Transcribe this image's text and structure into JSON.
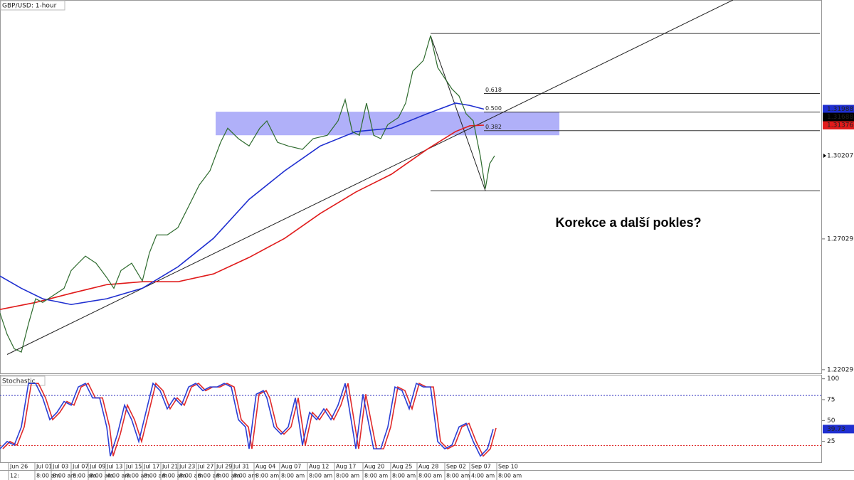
{
  "chart_data": [
    {
      "type": "line",
      "title": "GBP/USD: 1-hour",
      "xlim": [
        0,
        1155
      ],
      "ylim": [
        1.2189,
        1.3616
      ],
      "yticks": [
        1.22029,
        1.27029
      ],
      "xticks": [
        {
          "value": 12,
          "label": "Jun 26",
          "time": "12:"
        },
        {
          "value": 49,
          "label": "Jul 01",
          "time": "8:00 am"
        },
        {
          "value": 72,
          "label": "Jul 03",
          "time": "8:00 am"
        },
        {
          "value": 100,
          "label": "Jul 07",
          "time": "8:00 am"
        },
        {
          "value": 124,
          "label": "Jul 09",
          "time": "8:00 am"
        },
        {
          "value": 148,
          "label": "Jul 13",
          "time": "4:00 am"
        },
        {
          "value": 175,
          "label": "Jul 15",
          "time": "8:00 am"
        },
        {
          "value": 200,
          "label": "Jul 17",
          "time": "8:00 am"
        },
        {
          "value": 226,
          "label": "Jul 21",
          "time": "8:00 am"
        },
        {
          "value": 250,
          "label": "Jul 23",
          "time": "8:00 am"
        },
        {
          "value": 276,
          "label": "Jul 27",
          "time": "8:00 am"
        },
        {
          "value": 302,
          "label": "Jul 29",
          "time": "8:00 am"
        },
        {
          "value": 326,
          "label": "Jul 31",
          "time": "8:00 am"
        },
        {
          "value": 357,
          "label": "Aug 04",
          "time": "8:00 am"
        },
        {
          "value": 393,
          "label": "Aug 07",
          "time": "8:00 am"
        },
        {
          "value": 432,
          "label": "Aug 12",
          "time": "8:00 am"
        },
        {
          "value": 470,
          "label": "Aug 17",
          "time": "8:00 am"
        },
        {
          "value": 510,
          "label": "Aug 20",
          "time": "8:00 am"
        },
        {
          "value": 549,
          "label": "Aug 25",
          "time": "8:00 am"
        },
        {
          "value": 586,
          "label": "Aug 28",
          "time": "8:00 am"
        },
        {
          "value": 625,
          "label": "Sep 02",
          "time": "8:00 am"
        },
        {
          "value": 660,
          "label": "Sep 07",
          "time": "4:00 am"
        },
        {
          "value": 698,
          "label": "Sep 10",
          "time": "8:00 am"
        }
      ],
      "series": [
        {
          "color": "#2e6b2e",
          "x": [
            0,
            10,
            20,
            30,
            40,
            50,
            60,
            75,
            90,
            100,
            110,
            120,
            135,
            150,
            160,
            170,
            185,
            200,
            210,
            220,
            235,
            250,
            265,
            280,
            295,
            310,
            320,
            335,
            350,
            365,
            375,
            390,
            405,
            425,
            440,
            460,
            475,
            485,
            495,
            505,
            515,
            525,
            535,
            545,
            560,
            570,
            580,
            595,
            605,
            615,
            625,
            635,
            645,
            655,
            665,
            675,
            682,
            688,
            695
          ],
          "values": [
            1.2419,
            1.2338,
            1.2283,
            1.227,
            1.2378,
            1.2474,
            1.246,
            1.2487,
            1.2514,
            1.2582,
            1.261,
            1.2637,
            1.261,
            1.2555,
            1.2514,
            1.2582,
            1.261,
            1.2542,
            1.265,
            1.2718,
            1.2718,
            1.2746,
            1.2827,
            1.2909,
            1.2963,
            1.3072,
            1.3126,
            1.3086,
            1.3058,
            1.3126,
            1.3154,
            1.3072,
            1.3058,
            1.3045,
            1.3086,
            1.3099,
            1.3154,
            1.3235,
            1.3113,
            1.3099,
            1.3222,
            1.3099,
            1.3086,
            1.314,
            1.3167,
            1.3222,
            1.3344,
            1.3385,
            1.348,
            1.3358,
            1.3317,
            1.3276,
            1.3249,
            1.3181,
            1.3154,
            1.3018,
            1.2895,
            1.299,
            1.30207
          ],
          "label_bg": "#ffffff"
        },
        {
          "color": "#1f2fd0",
          "x": [
            0,
            30,
            60,
            100,
            150,
            200,
            250,
            300,
            350,
            400,
            450,
            500,
            550,
            600,
            640,
            660,
            680
          ],
          "values": [
            1.2561,
            1.2514,
            1.2474,
            1.2452,
            1.2474,
            1.2514,
            1.2596,
            1.2705,
            1.2854,
            1.2963,
            1.3058,
            1.3113,
            1.3126,
            1.3181,
            1.3222,
            1.3213,
            1.31988
          ],
          "label_bg": "#1f2fd0"
        },
        {
          "color": "#e01b1b",
          "x": [
            0,
            50,
            100,
            150,
            200,
            250,
            300,
            350,
            400,
            450,
            500,
            550,
            600,
            640,
            660,
            680
          ],
          "values": [
            1.2433,
            1.246,
            1.2495,
            1.2528,
            1.2539,
            1.2539,
            1.2569,
            1.2632,
            1.2705,
            1.28,
            1.2882,
            1.295,
            1.3045,
            1.3113,
            1.3135,
            1.31376
          ],
          "label_bg": "#e01b1b"
        }
      ],
      "price_labels": [
        {
          "value": 1.31688,
          "background": "#000000"
        }
      ],
      "swing": {
        "x": [
          605,
          1152
        ],
        "high": 1.3488,
        "low": 1.2887
      },
      "fib": {
        "x": [
          680,
          1152
        ],
        "ratios": [
          0.618,
          {
            "value": 0.5,
            "label": "0.500"
          },
          0.382
        ]
      },
      "zone": {
        "x": [
          303,
          786
        ],
        "y": [
          1.3099,
          1.3189
        ],
        "color": "#8f8ff7"
      },
      "trendlines": [
        {
          "x": [
            10,
            1030
          ],
          "y": [
            1.2261,
            1.3616
          ]
        },
        {
          "x": [
            605,
            682
          ],
          "y": [
            1.348,
            1.2887
          ]
        }
      ],
      "annotation": "Korekce a další pokles?"
    },
    {
      "type": "line",
      "title": "Stochastic",
      "xlim": [
        0,
        1155
      ],
      "ylim": [
        0,
        104
      ],
      "yticks": [
        25,
        50,
        75,
        100
      ],
      "levels": [
        {
          "value": 80,
          "color": "#3a3ac0"
        },
        {
          "value": 20,
          "color": "#e03030"
        }
      ],
      "series": [
        {
          "color": "#2b3fd6",
          "x": [
            0,
            10,
            20,
            30,
            40,
            50,
            60,
            70,
            80,
            90,
            100,
            110,
            120,
            130,
            140,
            150,
            155,
            165,
            175,
            185,
            195,
            205,
            215,
            225,
            235,
            245,
            255,
            265,
            275,
            285,
            295,
            305,
            315,
            325,
            335,
            345,
            350,
            360,
            370,
            375,
            385,
            395,
            405,
            415,
            425,
            435,
            445,
            455,
            465,
            475,
            485,
            495,
            500,
            510,
            515,
            525,
            535,
            545,
            555,
            565,
            575,
            585,
            595,
            605,
            615,
            625,
            635,
            645,
            655,
            665,
            675,
            685,
            693
          ],
          "values": [
            16.1,
            24.8,
            20.5,
            42.3,
            94.5,
            94.5,
            77.1,
            51.0,
            59.7,
            72.8,
            68.4,
            90.2,
            94.5,
            77.1,
            77.1,
            42.3,
            7.4,
            33.6,
            68.4,
            51.0,
            24.8,
            59.7,
            94.5,
            85.8,
            64.0,
            77.1,
            68.4,
            90.2,
            94.5,
            85.8,
            90.2,
            90.2,
            94.5,
            90.2,
            51.0,
            42.3,
            16.1,
            81.5,
            85.8,
            77.1,
            42.3,
            33.6,
            42.3,
            77.1,
            20.5,
            59.7,
            51.0,
            64.0,
            51.0,
            68.4,
            94.5,
            42.3,
            16.1,
            81.5,
            59.7,
            16.1,
            16.1,
            42.3,
            90.2,
            85.8,
            64.0,
            94.5,
            90.2,
            90.2,
            24.8,
            16.1,
            20.5,
            42.3,
            46.6,
            24.8,
            7.4,
            16.1,
            39.73
          ],
          "label_bg": "#1f2fd0"
        },
        {
          "color": "#e02a2a",
          "x": [
            4,
            14,
            24,
            34,
            44,
            54,
            64,
            74,
            84,
            94,
            104,
            114,
            124,
            134,
            144,
            154,
            159,
            169,
            179,
            189,
            199,
            209,
            219,
            229,
            239,
            249,
            259,
            269,
            279,
            289,
            299,
            309,
            319,
            329,
            339,
            349,
            354,
            364,
            374,
            379,
            389,
            399,
            409,
            419,
            429,
            439,
            449,
            459,
            469,
            479,
            489,
            499,
            504,
            514,
            519,
            529,
            539,
            549,
            559,
            569,
            579,
            589,
            599,
            609,
            619,
            629,
            639,
            649,
            659,
            669,
            679,
            689,
            697
          ],
          "values": [
            16.1,
            24.8,
            20.5,
            42.3,
            94.5,
            94.5,
            77.1,
            51.0,
            59.7,
            72.8,
            68.4,
            90.2,
            94.5,
            77.1,
            77.1,
            42.3,
            7.4,
            33.6,
            68.4,
            51.0,
            24.8,
            59.7,
            94.5,
            85.8,
            64.0,
            77.1,
            68.4,
            90.2,
            94.5,
            85.8,
            90.2,
            90.2,
            94.5,
            90.2,
            51.0,
            42.3,
            16.1,
            81.5,
            85.8,
            77.1,
            42.3,
            33.6,
            42.3,
            77.1,
            20.5,
            59.7,
            51.0,
            64.0,
            51.0,
            68.4,
            94.5,
            42.3,
            16.1,
            81.5,
            59.7,
            16.1,
            16.1,
            42.3,
            90.2,
            85.8,
            64.0,
            94.5,
            90.2,
            90.2,
            24.8,
            16.1,
            20.5,
            42.3,
            46.6,
            24.8,
            7.4,
            16.1,
            41.0
          ]
        }
      ]
    }
  ]
}
